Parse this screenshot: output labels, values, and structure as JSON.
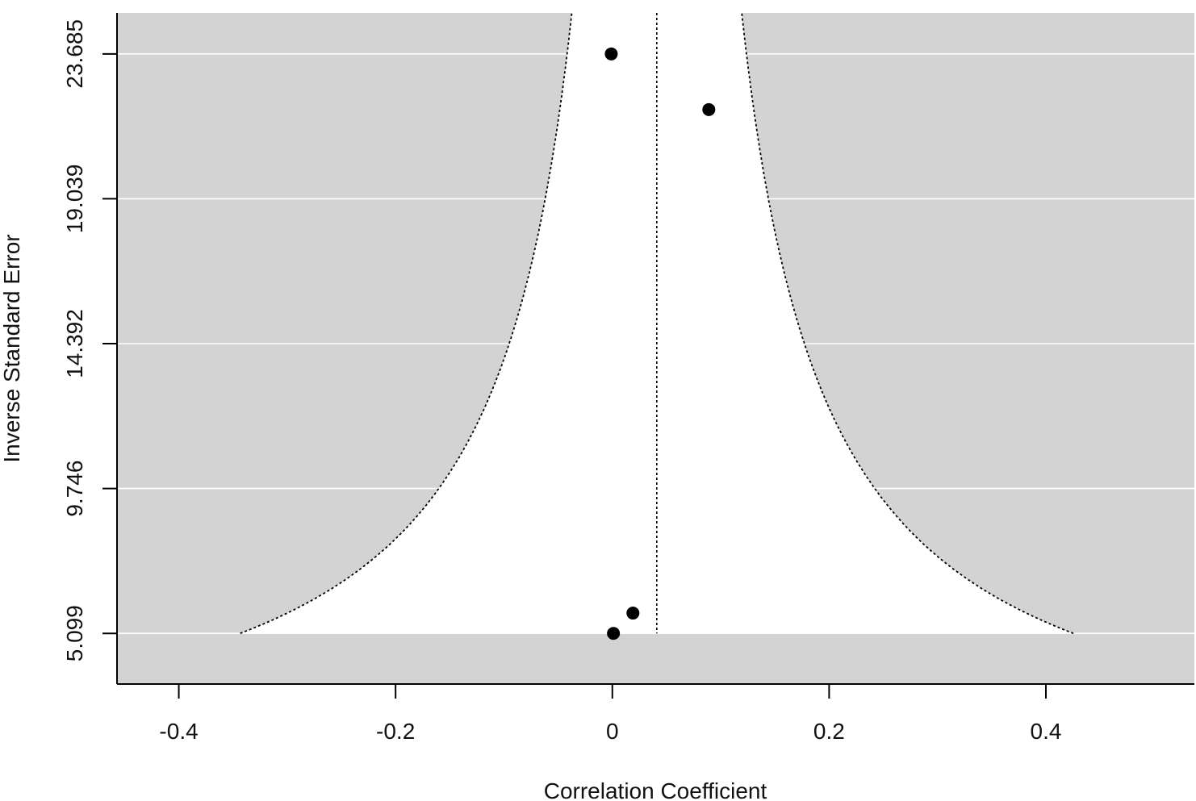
{
  "chart_data": {
    "type": "scatter",
    "subtype": "funnel-plot",
    "title": "",
    "xlabel": "Correlation Coefficient",
    "ylabel": "Inverse Standard Error",
    "xlim": [
      -0.457,
      0.537
    ],
    "ylim": [
      3.5,
      25.0
    ],
    "xticks": [
      -0.4,
      -0.2,
      0,
      0.2,
      0.4
    ],
    "xtick_labels": [
      "-0.4",
      "-0.2",
      "0",
      "0.2",
      "0.4"
    ],
    "yticks": [
      5.099,
      9.746,
      14.392,
      19.039,
      23.685
    ],
    "ytick_labels": [
      "5.099",
      "9.746",
      "14.392",
      "19.039",
      "23.685"
    ],
    "center_estimate": 0.041,
    "funnel_z": 1.96,
    "funnel_ymin": 5.099,
    "points": [
      {
        "x": -0.001,
        "y": 23.685
      },
      {
        "x": 0.089,
        "y": 21.9
      },
      {
        "x": 0.019,
        "y": 5.75
      },
      {
        "x": 0.001,
        "y": 5.099
      }
    ],
    "grid": true,
    "colors": {
      "background_shade": "#d3d3d3",
      "funnel_fill": "#ffffff",
      "gridline": "#ffffff",
      "points": "#000000",
      "axis": "#000000",
      "reference_line": "#000000"
    }
  }
}
